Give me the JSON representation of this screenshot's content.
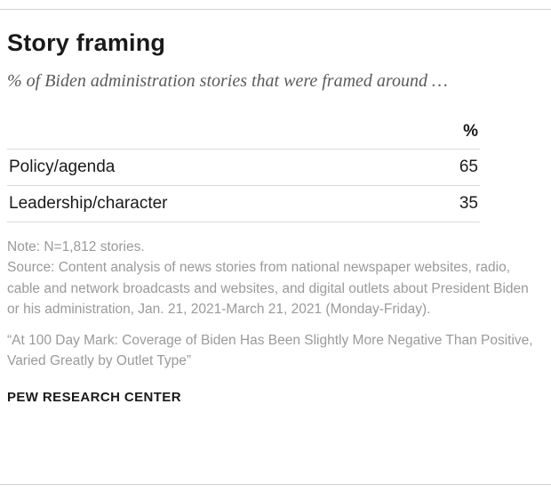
{
  "header": {
    "title": "Story framing",
    "subtitle": "% of Biden administration stories that were framed around …"
  },
  "table": {
    "value_header": "%",
    "rows": [
      {
        "label": "Policy/agenda",
        "value": "65"
      },
      {
        "label": "Leadership/character",
        "value": "35"
      }
    ]
  },
  "notes": {
    "note": "Note: N=1,812 stories.",
    "source": "Source: Content analysis of news stories from national newspaper websites, radio, cable and network broadcasts and websites, and digital outlets about President Biden or his administration, Jan. 21, 2021-March 21, 2021 (Monday-Friday).",
    "quote": "“At 100 Day Mark: Coverage of Biden Has Been Slightly More Negative Than Positive, Varied Greatly by Outlet Type”"
  },
  "footer": {
    "brand": "PEW RESEARCH CENTER"
  },
  "colors": {
    "text": "#1a1a1a",
    "subtitle_gray": "#5a5a5a",
    "note_gray": "#9a9a9a",
    "rule_gray": "#cfcfcf"
  },
  "chart_data": {
    "type": "table",
    "title": "Story framing",
    "subtitle": "% of Biden administration stories that were framed around …",
    "value_unit": "%",
    "categories": [
      "Policy/agenda",
      "Leadership/character"
    ],
    "values": [
      65,
      35
    ]
  }
}
